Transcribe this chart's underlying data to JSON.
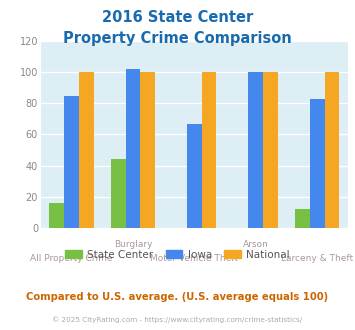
{
  "title_line1": "2016 State Center",
  "title_line2": "Property Crime Comparison",
  "categories": [
    "All Property Crime",
    "Burglary",
    "Motor Vehicle Theft",
    "Arson",
    "Larceny & Theft"
  ],
  "top_labels": [
    "",
    "Burglary",
    "",
    "Arson",
    ""
  ],
  "bottom_labels": [
    "All Property Crime",
    "",
    "Motor Vehicle Theft",
    "",
    "Larceny & Theft"
  ],
  "state_center": [
    16,
    44,
    0,
    0,
    12
  ],
  "iowa": [
    85,
    102,
    67,
    100,
    83
  ],
  "national": [
    100,
    100,
    100,
    100,
    100
  ],
  "colors": {
    "state_center": "#77c044",
    "iowa": "#4488ee",
    "national": "#f5a623"
  },
  "ylim": [
    0,
    120
  ],
  "yticks": [
    0,
    20,
    40,
    60,
    80,
    100,
    120
  ],
  "plot_bg": "#ddeef5",
  "title_color": "#1a6ab0",
  "axis_label_color": "#aa9999",
  "legend_labels": [
    "State Center",
    "Iowa",
    "National"
  ],
  "footer_text": "Compared to U.S. average. (U.S. average equals 100)",
  "copyright_text": "© 2025 CityRating.com - https://www.cityrating.com/crime-statistics/",
  "footer_color": "#cc6600",
  "copyright_color": "#aaaaaa"
}
